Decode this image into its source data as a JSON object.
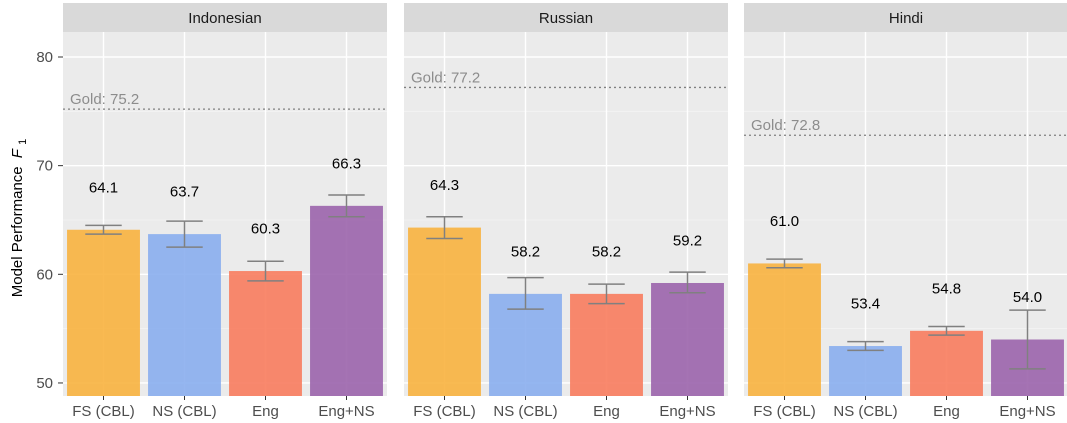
{
  "chart_data": {
    "type": "bar",
    "ylabel": "Model Performance",
    "ylabel_sub": "F",
    "ylabel_subscript": "1",
    "ylim": [
      48.8,
      82.3
    ],
    "yticks": [
      50,
      60,
      70,
      80
    ],
    "grid": true,
    "categories": [
      "FS (CBL)",
      "NS (CBL)",
      "Eng",
      "Eng+NS"
    ],
    "colors": [
      "#F8B33F",
      "#8AAEEE",
      "#F87C5E",
      "#9B64AC"
    ],
    "gold_prefix": "Gold: ",
    "panels": [
      {
        "title": "Indonesian",
        "gold": 75.2,
        "gold_label": "Gold: 75.2",
        "values": [
          64.1,
          63.7,
          60.3,
          66.3
        ],
        "labels": [
          "64.1",
          "63.7",
          "60.3",
          "66.3"
        ],
        "err_low": [
          63.7,
          62.5,
          59.4,
          65.3
        ],
        "err_high": [
          64.5,
          64.9,
          61.2,
          67.3
        ],
        "label_y": [
          68.0,
          67.6,
          64.2,
          70.2
        ]
      },
      {
        "title": "Russian",
        "gold": 77.2,
        "gold_label": "Gold: 77.2",
        "values": [
          64.3,
          58.2,
          58.2,
          59.2
        ],
        "labels": [
          "64.3",
          "58.2",
          "58.2",
          "59.2"
        ],
        "err_low": [
          63.3,
          56.8,
          57.3,
          58.3
        ],
        "err_high": [
          65.3,
          59.7,
          59.1,
          60.2
        ],
        "label_y": [
          68.2,
          62.1,
          62.1,
          63.1
        ]
      },
      {
        "title": "Hindi",
        "gold": 72.8,
        "gold_label": "Gold: 72.8",
        "values": [
          61.0,
          53.4,
          54.8,
          54.0
        ],
        "labels": [
          "61.0",
          "53.4",
          "54.8",
          "54.0"
        ],
        "err_low": [
          60.6,
          53.0,
          54.4,
          51.3
        ],
        "err_high": [
          61.4,
          53.8,
          55.2,
          56.7
        ],
        "label_y": [
          64.9,
          57.3,
          58.7,
          57.9
        ]
      }
    ]
  }
}
